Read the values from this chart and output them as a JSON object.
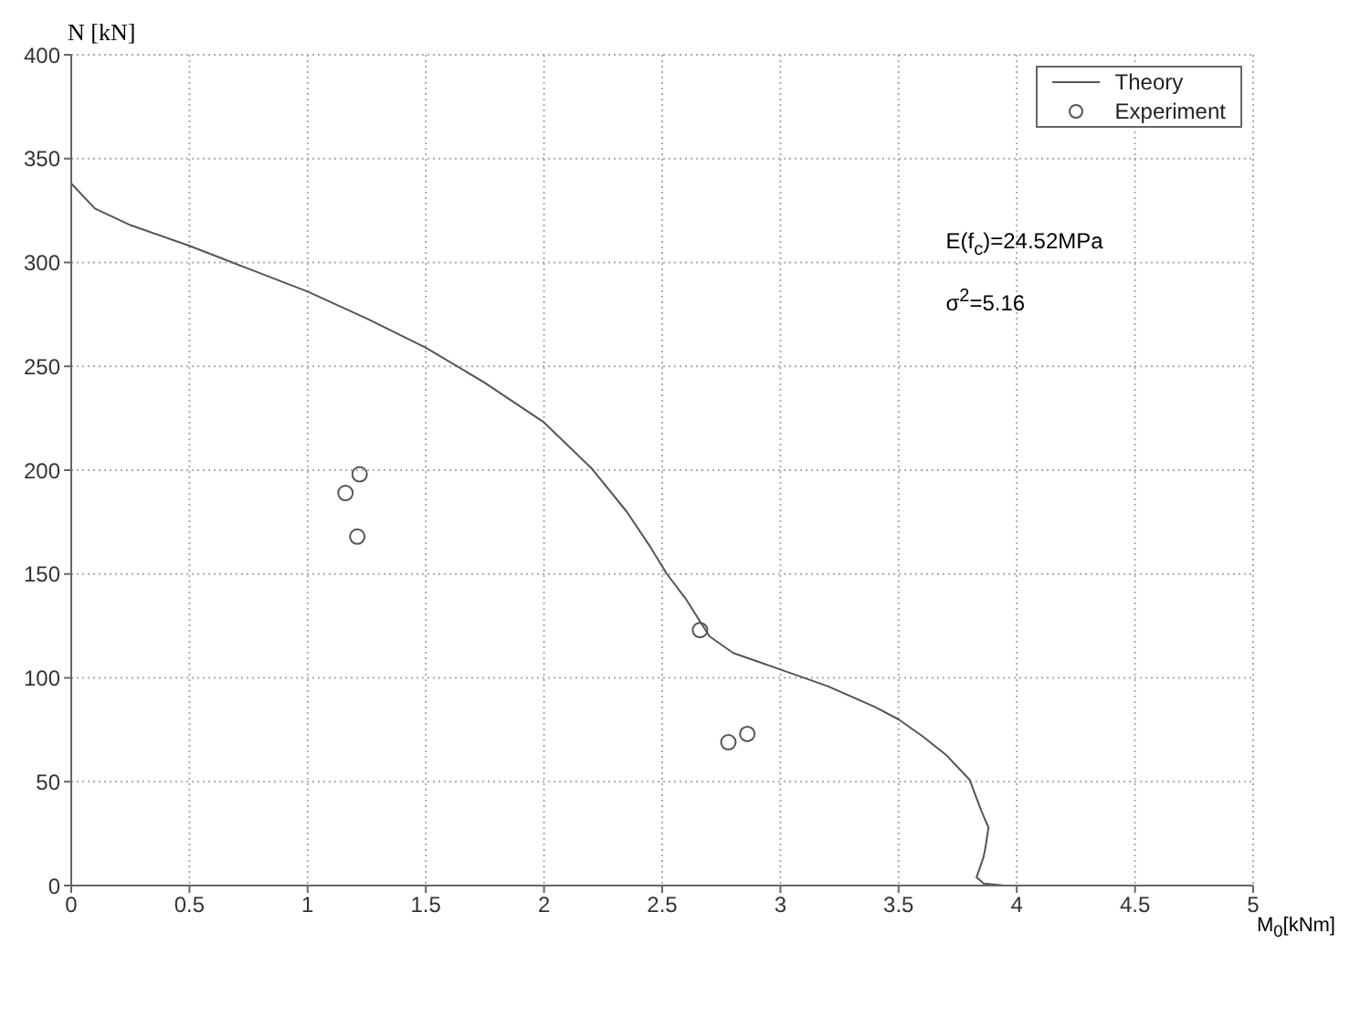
{
  "chart_data": {
    "type": "line",
    "xlabel": "M$_{0}$[kNm]",
    "ylabel": "N [kN]",
    "xlim": [
      0,
      5
    ],
    "xticks": [
      0,
      0.5,
      1,
      1.5,
      2,
      2.5,
      3,
      3.5,
      4,
      4.5,
      5
    ],
    "ylim": [
      0,
      400
    ],
    "yticks": [
      0,
      50,
      100,
      150,
      200,
      250,
      300,
      350,
      400
    ],
    "grid": true,
    "legend": "top right",
    "annotations": [
      "E(f$_{c}$)=24.52MPa",
      "σ$^{2}$=5.16"
    ],
    "series": [
      {
        "name": "Theory",
        "color": "#555555",
        "marker": "none",
        "line_style": "solid",
        "x": [
          0,
          0.1,
          0.25,
          0.5,
          0.75,
          1,
          1.25,
          1.5,
          1.75,
          2,
          2.2,
          2.35,
          2.45,
          2.52,
          2.6,
          2.7,
          2.8,
          2.9,
          3,
          3.2,
          3.4,
          3.5,
          3.6,
          3.7,
          3.8,
          3.85,
          3.88,
          3.87,
          3.86,
          3.83,
          3.86,
          3.95,
          4
        ],
        "values": [
          338,
          326,
          318,
          308,
          297,
          286,
          273,
          259,
          242,
          223,
          201,
          180,
          163,
          150,
          138,
          120,
          112,
          108,
          104,
          96,
          86,
          80,
          72,
          63,
          51,
          36,
          28,
          20,
          14,
          4,
          1,
          0,
          0
        ]
      },
      {
        "name": "Experiment",
        "type": "scatter",
        "color": "#555555",
        "marker": "circle",
        "x": [
          1.16,
          1.22,
          1.21,
          2.66,
          2.78,
          2.86
        ],
        "values": [
          189,
          198,
          168,
          123,
          69,
          73
        ]
      }
    ]
  }
}
